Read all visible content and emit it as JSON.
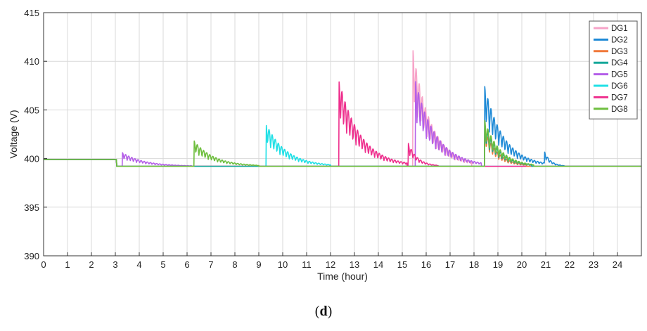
{
  "caption": {
    "open": "(",
    "letter": "d",
    "close": ")"
  },
  "chart_data": {
    "type": "line",
    "title": "",
    "xlabel": "Time (hour)",
    "ylabel": "Voltage (V)",
    "xlim": [
      0,
      25
    ],
    "ylim": [
      390,
      415
    ],
    "xticks": [
      0,
      1,
      2,
      3,
      4,
      5,
      6,
      7,
      8,
      9,
      10,
      11,
      12,
      13,
      14,
      15,
      16,
      17,
      18,
      19,
      20,
      21,
      22,
      23,
      24
    ],
    "yticks": [
      390,
      395,
      400,
      405,
      410,
      415
    ],
    "grid": true,
    "legend_position": "top-right",
    "baseline": {
      "before": 399.9,
      "after": 399.2,
      "drop_at": 3.05
    },
    "series": [
      {
        "name": "DG1",
        "color": "#f7a3c8",
        "events": [
          {
            "start": 15.45,
            "end": 17.9,
            "peak": 411.1
          }
        ]
      },
      {
        "name": "DG2",
        "color": "#1f8ad6",
        "events": [
          {
            "start": 18.45,
            "end": 21.0,
            "peak": 407.4
          },
          {
            "start": 20.95,
            "end": 21.8,
            "peak": 400.7
          }
        ]
      },
      {
        "name": "DG3",
        "color": "#f0783a",
        "events": [
          {
            "start": 18.45,
            "end": 20.2,
            "peak": 403.0
          }
        ]
      },
      {
        "name": "DG4",
        "color": "#16a89a",
        "events": [
          {
            "start": 18.45,
            "end": 20.4,
            "peak": 403.5
          }
        ]
      },
      {
        "name": "DG5",
        "color": "#b45fe8",
        "events": [
          {
            "start": 3.3,
            "end": 6.2,
            "peak": 400.6
          },
          {
            "start": 15.55,
            "end": 18.3,
            "peak": 408.0
          }
        ]
      },
      {
        "name": "DG6",
        "color": "#20e0e6",
        "events": [
          {
            "start": 9.3,
            "end": 12.0,
            "peak": 403.6
          }
        ]
      },
      {
        "name": "DG7",
        "color": "#ee2f8d",
        "events": [
          {
            "start": 12.35,
            "end": 15.2,
            "peak": 408.1
          },
          {
            "start": 15.25,
            "end": 16.5,
            "peak": 401.6
          }
        ]
      },
      {
        "name": "DG8",
        "color": "#6ebe3e",
        "events": [
          {
            "start": 6.3,
            "end": 9.0,
            "peak": 401.8
          },
          {
            "start": 18.45,
            "end": 20.5,
            "peak": 403.9
          }
        ]
      }
    ]
  }
}
